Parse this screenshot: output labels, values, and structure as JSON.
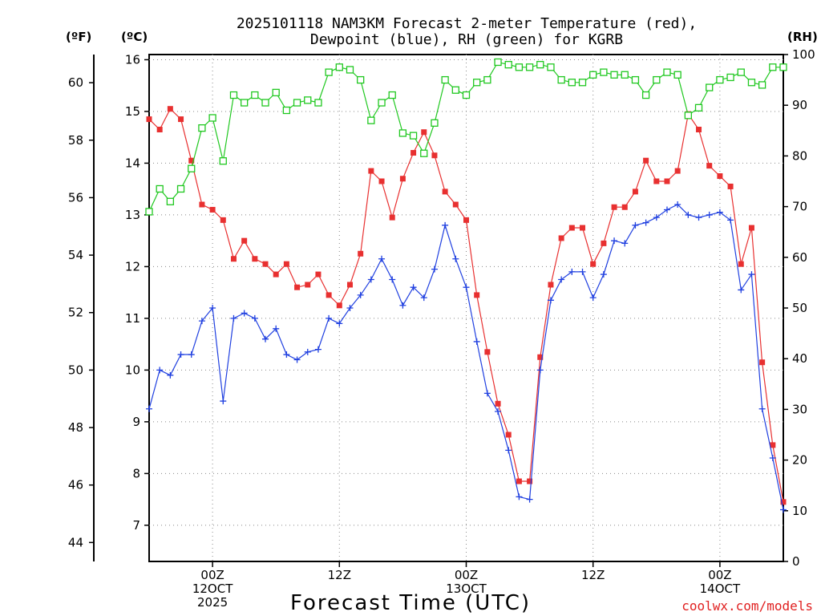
{
  "chart_data": {
    "type": "line",
    "title_line1": "2025101118 NAM3KM Forecast 2-meter Temperature (red),",
    "title_line2": "Dewpoint (blue), RH (green) for KGRB",
    "left_outer_unit": "(ºF)",
    "left_inner_unit": "(ºC)",
    "right_unit": "(RH)",
    "xlabel": "Forecast Time (UTC)",
    "credit": "coolwx.com/models",
    "x_range_hours": [
      0,
      60
    ],
    "celsius_range": [
      6.3,
      16.1
    ],
    "fahrenheit_range": [
      43.34,
      60.98
    ],
    "rh_range": [
      0,
      100
    ],
    "celsius_ticks": [
      "7",
      "8",
      "9",
      "10",
      "11",
      "12",
      "13",
      "14",
      "15",
      "16"
    ],
    "fahrenheit_ticks": [
      "44",
      "46",
      "48",
      "50",
      "52",
      "54",
      "56",
      "58",
      "60"
    ],
    "rh_ticks": [
      "0",
      "10",
      "20",
      "30",
      "40",
      "50",
      "60",
      "70",
      "80",
      "90",
      "100"
    ],
    "x_ticks": [
      {
        "hour": 6,
        "lines": [
          "00Z",
          "12OCT",
          "2025"
        ]
      },
      {
        "hour": 18,
        "lines": [
          "12Z"
        ]
      },
      {
        "hour": 30,
        "lines": [
          "00Z",
          "13OCT"
        ]
      },
      {
        "hour": 42,
        "lines": [
          "12Z"
        ]
      },
      {
        "hour": 54,
        "lines": [
          "00Z",
          "14OCT"
        ]
      }
    ],
    "series": [
      {
        "name": "Temperature",
        "units": "°C",
        "color": "#e83030",
        "marker": "filled-square",
        "values": [
          14.85,
          14.65,
          15.05,
          14.85,
          14.05,
          13.2,
          13.1,
          12.9,
          12.15,
          12.5,
          12.15,
          12.05,
          11.85,
          12.05,
          11.6,
          11.65,
          11.85,
          11.45,
          11.25,
          11.65,
          12.25,
          13.85,
          13.65,
          12.95,
          13.7,
          14.2,
          14.6,
          14.15,
          13.45,
          13.2,
          12.9,
          11.45,
          10.35,
          9.35,
          8.75,
          7.85,
          7.85,
          10.25,
          11.65,
          12.55,
          12.75,
          12.75,
          12.05,
          12.45,
          13.15,
          13.15,
          13.45,
          14.05,
          13.65,
          13.65,
          13.85,
          14.95,
          14.65,
          13.95,
          13.75,
          13.55,
          12.05,
          12.75,
          10.15,
          8.55,
          7.45
        ]
      },
      {
        "name": "Dewpoint",
        "units": "°C",
        "color": "#2040e0",
        "marker": "plus",
        "values": [
          9.25,
          10.0,
          9.9,
          10.3,
          10.3,
          10.95,
          11.2,
          9.4,
          11.0,
          11.1,
          11.0,
          10.6,
          10.8,
          10.3,
          10.2,
          10.35,
          10.4,
          11.0,
          10.9,
          11.2,
          11.45,
          11.75,
          12.15,
          11.75,
          11.25,
          11.6,
          11.4,
          11.95,
          12.8,
          12.15,
          11.6,
          10.55,
          9.55,
          9.2,
          8.45,
          7.55,
          7.5,
          10.0,
          11.35,
          11.75,
          11.9,
          11.9,
          11.4,
          11.85,
          12.5,
          12.45,
          12.8,
          12.85,
          12.95,
          13.1,
          13.2,
          13.0,
          12.95,
          13.0,
          13.05,
          12.9,
          11.55,
          11.85,
          9.25,
          8.3,
          7.3
        ]
      },
      {
        "name": "RH",
        "units": "%",
        "color": "#20c820",
        "marker": "open-square",
        "values": [
          69,
          73.5,
          71,
          73.5,
          77.5,
          85.5,
          87.5,
          79,
          92,
          90.5,
          92,
          90.5,
          92.5,
          89,
          90.5,
          91,
          90.5,
          96.5,
          97.5,
          97,
          95,
          87,
          90.5,
          92,
          84.5,
          84,
          80.5,
          86.5,
          95,
          93,
          92,
          94.5,
          95,
          98.5,
          98,
          97.5,
          97.5,
          98,
          97.5,
          95,
          94.5,
          94.5,
          96,
          96.5,
          96,
          96,
          95,
          92,
          95,
          96.5,
          96,
          88,
          89.5,
          93.5,
          95,
          95.5,
          96.5,
          94.5,
          94,
          97.5,
          97.5
        ]
      }
    ]
  }
}
